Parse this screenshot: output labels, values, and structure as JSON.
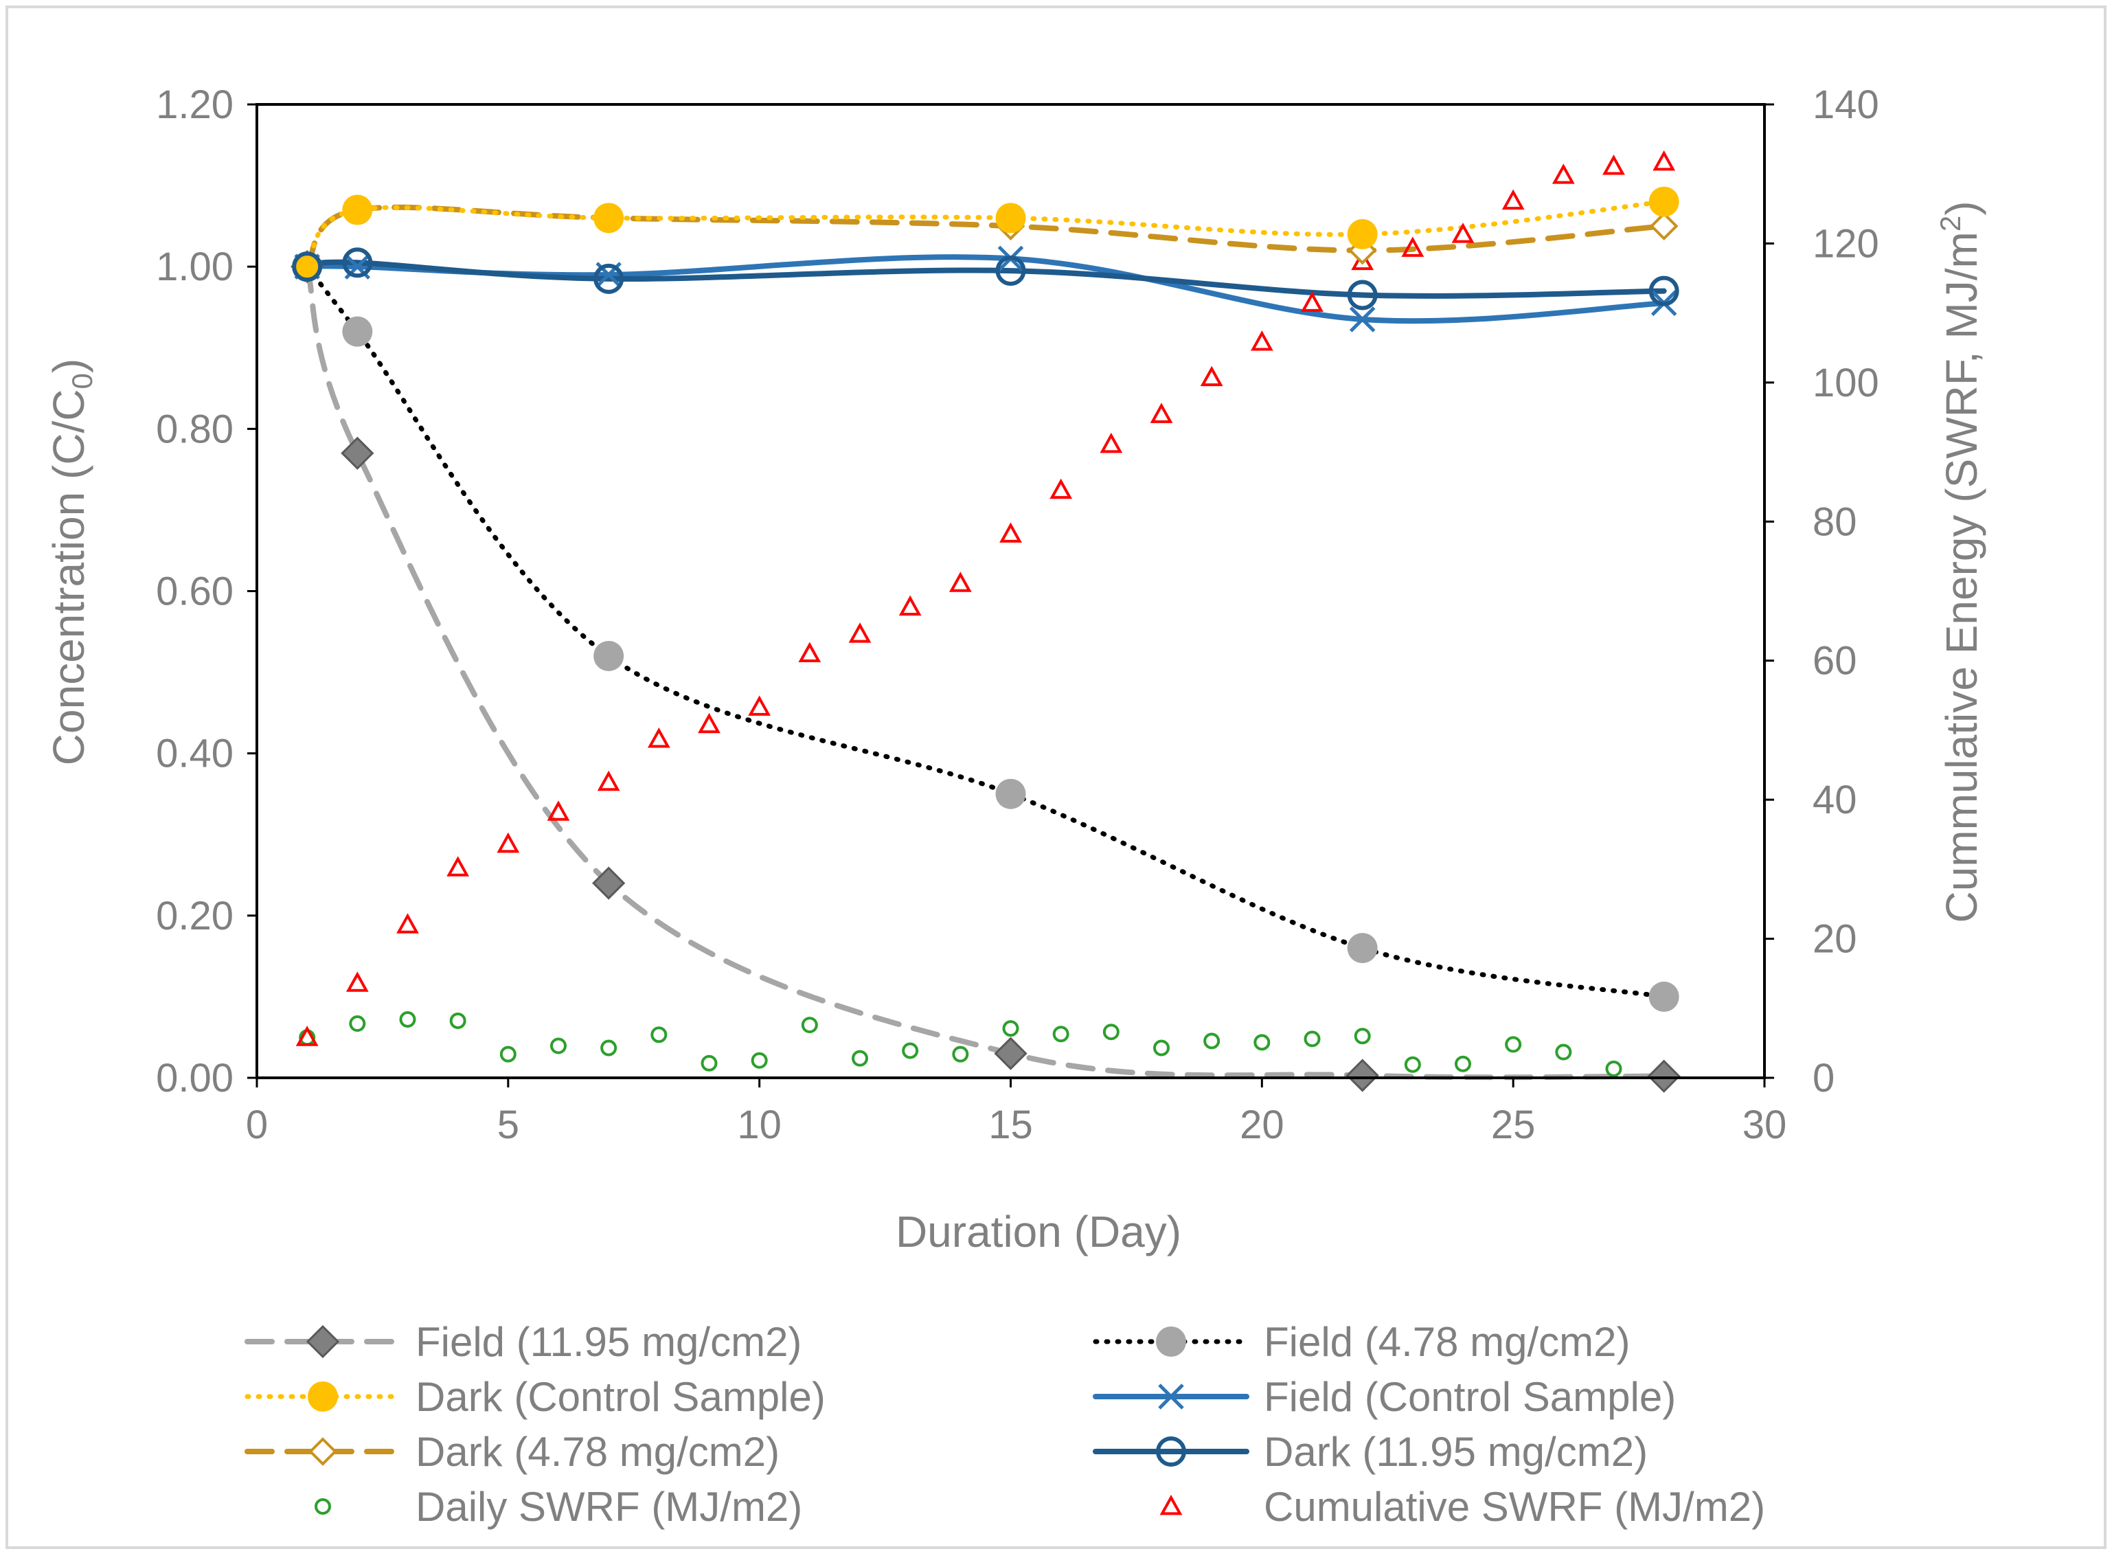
{
  "chart_data": {
    "type": "line",
    "title": "",
    "xlabel": "Duration (Day)",
    "ylabel_left": {
      "main": "Concentration (C/C",
      "sub": "0",
      "end": ")"
    },
    "ylabel_right": {
      "main": "Cummulative Energy (SWRF, MJ/m",
      "sup": "2",
      "end": ")"
    },
    "xlim": [
      0,
      30
    ],
    "ylim_left": [
      0,
      1.2
    ],
    "ylim_right": [
      0,
      140
    ],
    "x_ticks": [
      "0",
      "5",
      "10",
      "15",
      "20",
      "25",
      "30"
    ],
    "y_left_ticks": [
      "0.00",
      "0.20",
      "0.40",
      "0.60",
      "0.80",
      "1.00",
      "1.20"
    ],
    "y_right_ticks": [
      "0",
      "20",
      "40",
      "60",
      "80",
      "100",
      "120",
      "140"
    ],
    "series": [
      {
        "name": "Field (11.95 mg/cm2)",
        "axis": "left",
        "color": "#a6a6a6",
        "marker_color": "#808080",
        "marker": "diamond",
        "line": "dashed",
        "x": [
          1,
          2,
          7,
          15,
          22,
          28
        ],
        "values": [
          1.0,
          0.77,
          0.24,
          0.03,
          0.003,
          0.002
        ]
      },
      {
        "name": "Field (4.78 mg/cm2)",
        "axis": "left",
        "color": "#000000",
        "marker_color": "#a6a6a6",
        "marker": "circle",
        "line": "dotted",
        "x": [
          1,
          2,
          7,
          15,
          22,
          28
        ],
        "values": [
          1.0,
          0.92,
          0.52,
          0.35,
          0.16,
          0.1
        ]
      },
      {
        "name": "Dark (Control Sample)",
        "axis": "left",
        "color": "#ffc000",
        "marker_color": "#ffc000",
        "marker": "circle",
        "line": "dotted",
        "x": [
          1,
          2,
          7,
          15,
          22,
          28
        ],
        "values": [
          1.0,
          1.07,
          1.06,
          1.06,
          1.04,
          1.08
        ]
      },
      {
        "name": "Field (Control Sample)",
        "axis": "left",
        "color": "#2e75b6",
        "marker_color": "#2e75b6",
        "marker": "x",
        "line": "solid",
        "x": [
          1,
          2,
          7,
          15,
          22,
          28
        ],
        "values": [
          1.0,
          1.0,
          0.99,
          1.01,
          0.935,
          0.955
        ]
      },
      {
        "name": "Dark (4.78 mg/cm2)",
        "axis": "left",
        "color": "#c9921e",
        "marker_color": "#c9921e",
        "marker": "diamond-open",
        "line": "dashed",
        "x": [
          1,
          2,
          7,
          15,
          22,
          28
        ],
        "values": [
          1.0,
          1.07,
          1.06,
          1.05,
          1.02,
          1.05
        ]
      },
      {
        "name": "Dark (11.95 mg/cm2)",
        "axis": "left",
        "color": "#1f5a8c",
        "marker_color": "#1f5a8c",
        "marker": "circle-open",
        "line": "solid",
        "x": [
          1,
          2,
          7,
          15,
          22,
          28
        ],
        "values": [
          1.0,
          1.005,
          0.985,
          0.995,
          0.965,
          0.97
        ]
      },
      {
        "name": "Daily SWRF (MJ/m2)",
        "axis": "right",
        "color": "#2ca02c",
        "marker_color": "#2ca02c",
        "marker": "circle-small-open",
        "line": "none",
        "x": [
          1,
          2,
          3,
          4,
          5,
          6,
          7,
          8,
          9,
          10,
          11,
          12,
          13,
          14,
          15,
          16,
          17,
          18,
          19,
          20,
          21,
          22,
          23,
          24,
          25,
          26,
          27,
          28
        ],
        "values": [
          5.8,
          7.8,
          8.4,
          8.2,
          3.4,
          4.6,
          4.3,
          6.2,
          2.1,
          2.5,
          7.6,
          2.8,
          3.9,
          3.4,
          7.1,
          6.3,
          6.6,
          4.3,
          5.3,
          5.1,
          5.6,
          6.0,
          1.9,
          2.0,
          4.8,
          3.7,
          1.3,
          0.6
        ]
      },
      {
        "name": "Cumulative SWRF (MJ/m2)",
        "axis": "right",
        "color": "#ff0000",
        "marker_color": "#ff0000",
        "marker": "triangle-open",
        "line": "none",
        "x": [
          1,
          2,
          3,
          4,
          5,
          6,
          7,
          8,
          9,
          10,
          11,
          12,
          13,
          14,
          15,
          16,
          17,
          18,
          19,
          20,
          21,
          22,
          23,
          24,
          25,
          26,
          27,
          28
        ],
        "values": [
          5.8,
          13.6,
          22.0,
          30.2,
          33.6,
          38.2,
          42.5,
          48.7,
          50.8,
          53.3,
          61.0,
          63.8,
          67.7,
          71.1,
          78.2,
          84.5,
          91.1,
          95.4,
          100.7,
          105.8,
          111.4,
          117.4,
          119.3,
          121.3,
          126.1,
          129.8,
          131.1,
          131.7
        ]
      }
    ]
  }
}
